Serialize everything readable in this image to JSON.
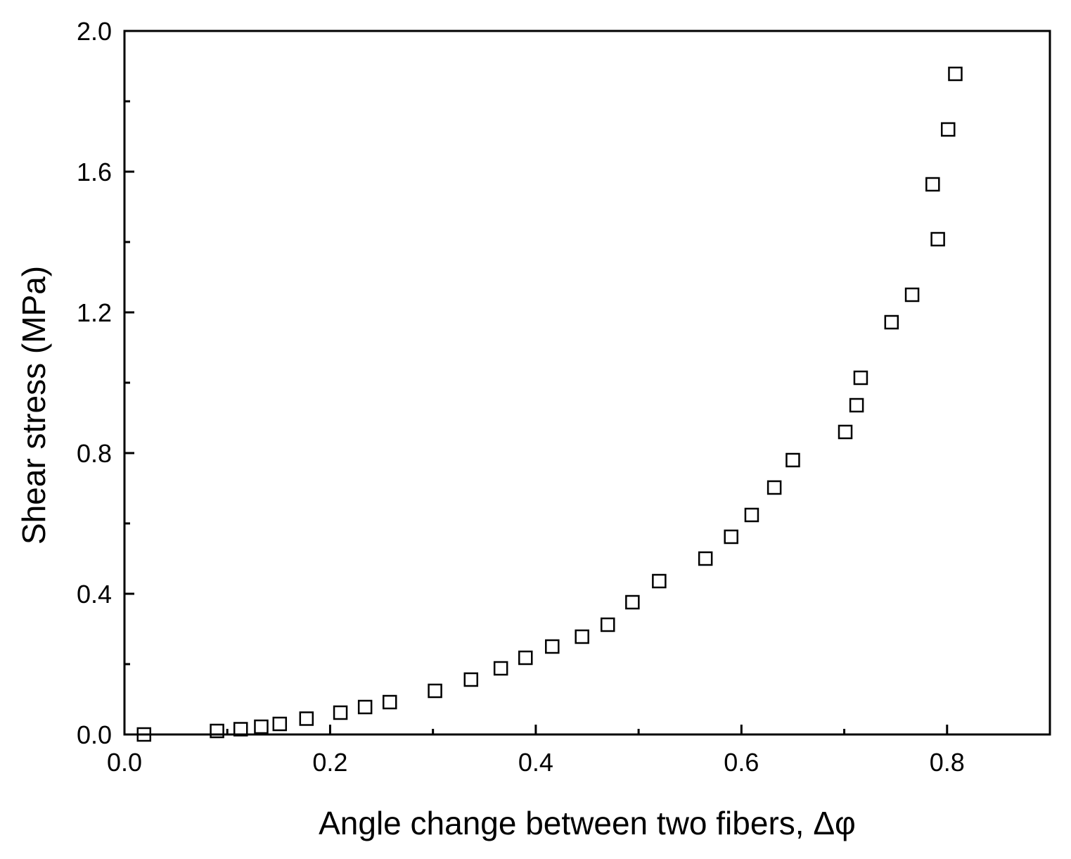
{
  "chart_data": {
    "type": "scatter",
    "xlabel": "Angle change between two fibers, Δφ",
    "ylabel": "Shear stress (MPa)",
    "xlim": [
      0.0,
      0.9
    ],
    "ylim": [
      0.0,
      2.0
    ],
    "x_ticks": [
      "0.0",
      "0.2",
      "0.4",
      "0.6",
      "0.8"
    ],
    "y_ticks": [
      "0.0",
      "0.4",
      "0.8",
      "1.2",
      "1.6",
      "2.0"
    ],
    "grid": false,
    "marker": "open-square",
    "series": [
      {
        "x": [
          0.019,
          0.09,
          0.113,
          0.133,
          0.151,
          0.177,
          0.21,
          0.234,
          0.258,
          0.302,
          0.337,
          0.366,
          0.39,
          0.416,
          0.445,
          0.47,
          0.494,
          0.52,
          0.565,
          0.59,
          0.61,
          0.632,
          0.65,
          0.701,
          0.712,
          0.716,
          0.746,
          0.766,
          0.786,
          0.791,
          0.801,
          0.808
        ],
        "y": [
          0.0,
          0.01,
          0.015,
          0.022,
          0.03,
          0.045,
          0.062,
          0.078,
          0.092,
          0.124,
          0.156,
          0.188,
          0.218,
          0.25,
          0.278,
          0.312,
          0.376,
          0.436,
          0.5,
          0.562,
          0.624,
          0.702,
          0.78,
          0.86,
          0.936,
          1.014,
          1.172,
          1.25,
          1.564,
          1.408,
          1.72,
          1.878
        ]
      }
    ]
  }
}
